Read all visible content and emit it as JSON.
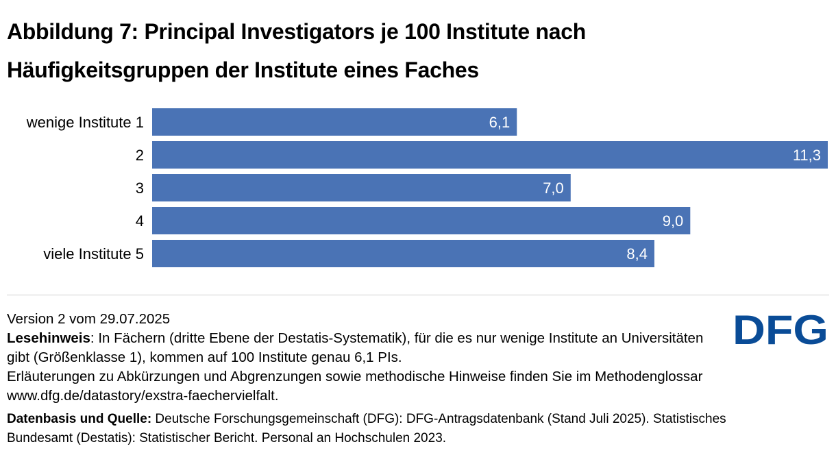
{
  "title": {
    "line1": "Abbildung 7: Principal Investigators je 100 Institute nach",
    "line2": "Häufigkeitsgruppen der Institute eines Faches"
  },
  "chart_data": {
    "type": "bar",
    "orientation": "horizontal",
    "categories": [
      "wenige Institute 1",
      "2",
      "3",
      "4",
      "viele Institute 5"
    ],
    "values": [
      6.1,
      11.3,
      7.0,
      9.0,
      8.4
    ],
    "value_labels": [
      "6,1",
      "11,3",
      "7,0",
      "9,0",
      "8,4"
    ],
    "xlim": [
      0,
      11.3
    ],
    "bar_color": "#4a73b5",
    "label_color": "#ffffff",
    "grid": false,
    "legend": "none"
  },
  "footer": {
    "version": "Version 2 vom 29.07.2025",
    "hint_label": "Lesehinweis",
    "hint_text": ": In Fächern (dritte Ebene der Destatis-Systematik), für die es nur wenige Institute an Universitäten gibt (Größenklasse 1), kommen auf 100 Institute genau 6,1 PIs.",
    "explanation": "Erläuterungen zu Abkürzungen und Abgrenzungen sowie methodische Hinweise finden Sie im Methodenglossar www.dfg.de/datastory/exstra-faechervielfalt.",
    "source_label": "Datenbasis und Quelle:",
    "source_text": " Deutsche Forschungsgemeinschaft (DFG): DFG-Antragsdatenbank (Stand Juli 2025). Statistisches Bundesamt (Destatis): Statistischer Bericht. Personal an Hochschulen 2023."
  },
  "logo": {
    "text": "DFG",
    "color": "#0a4c97"
  }
}
